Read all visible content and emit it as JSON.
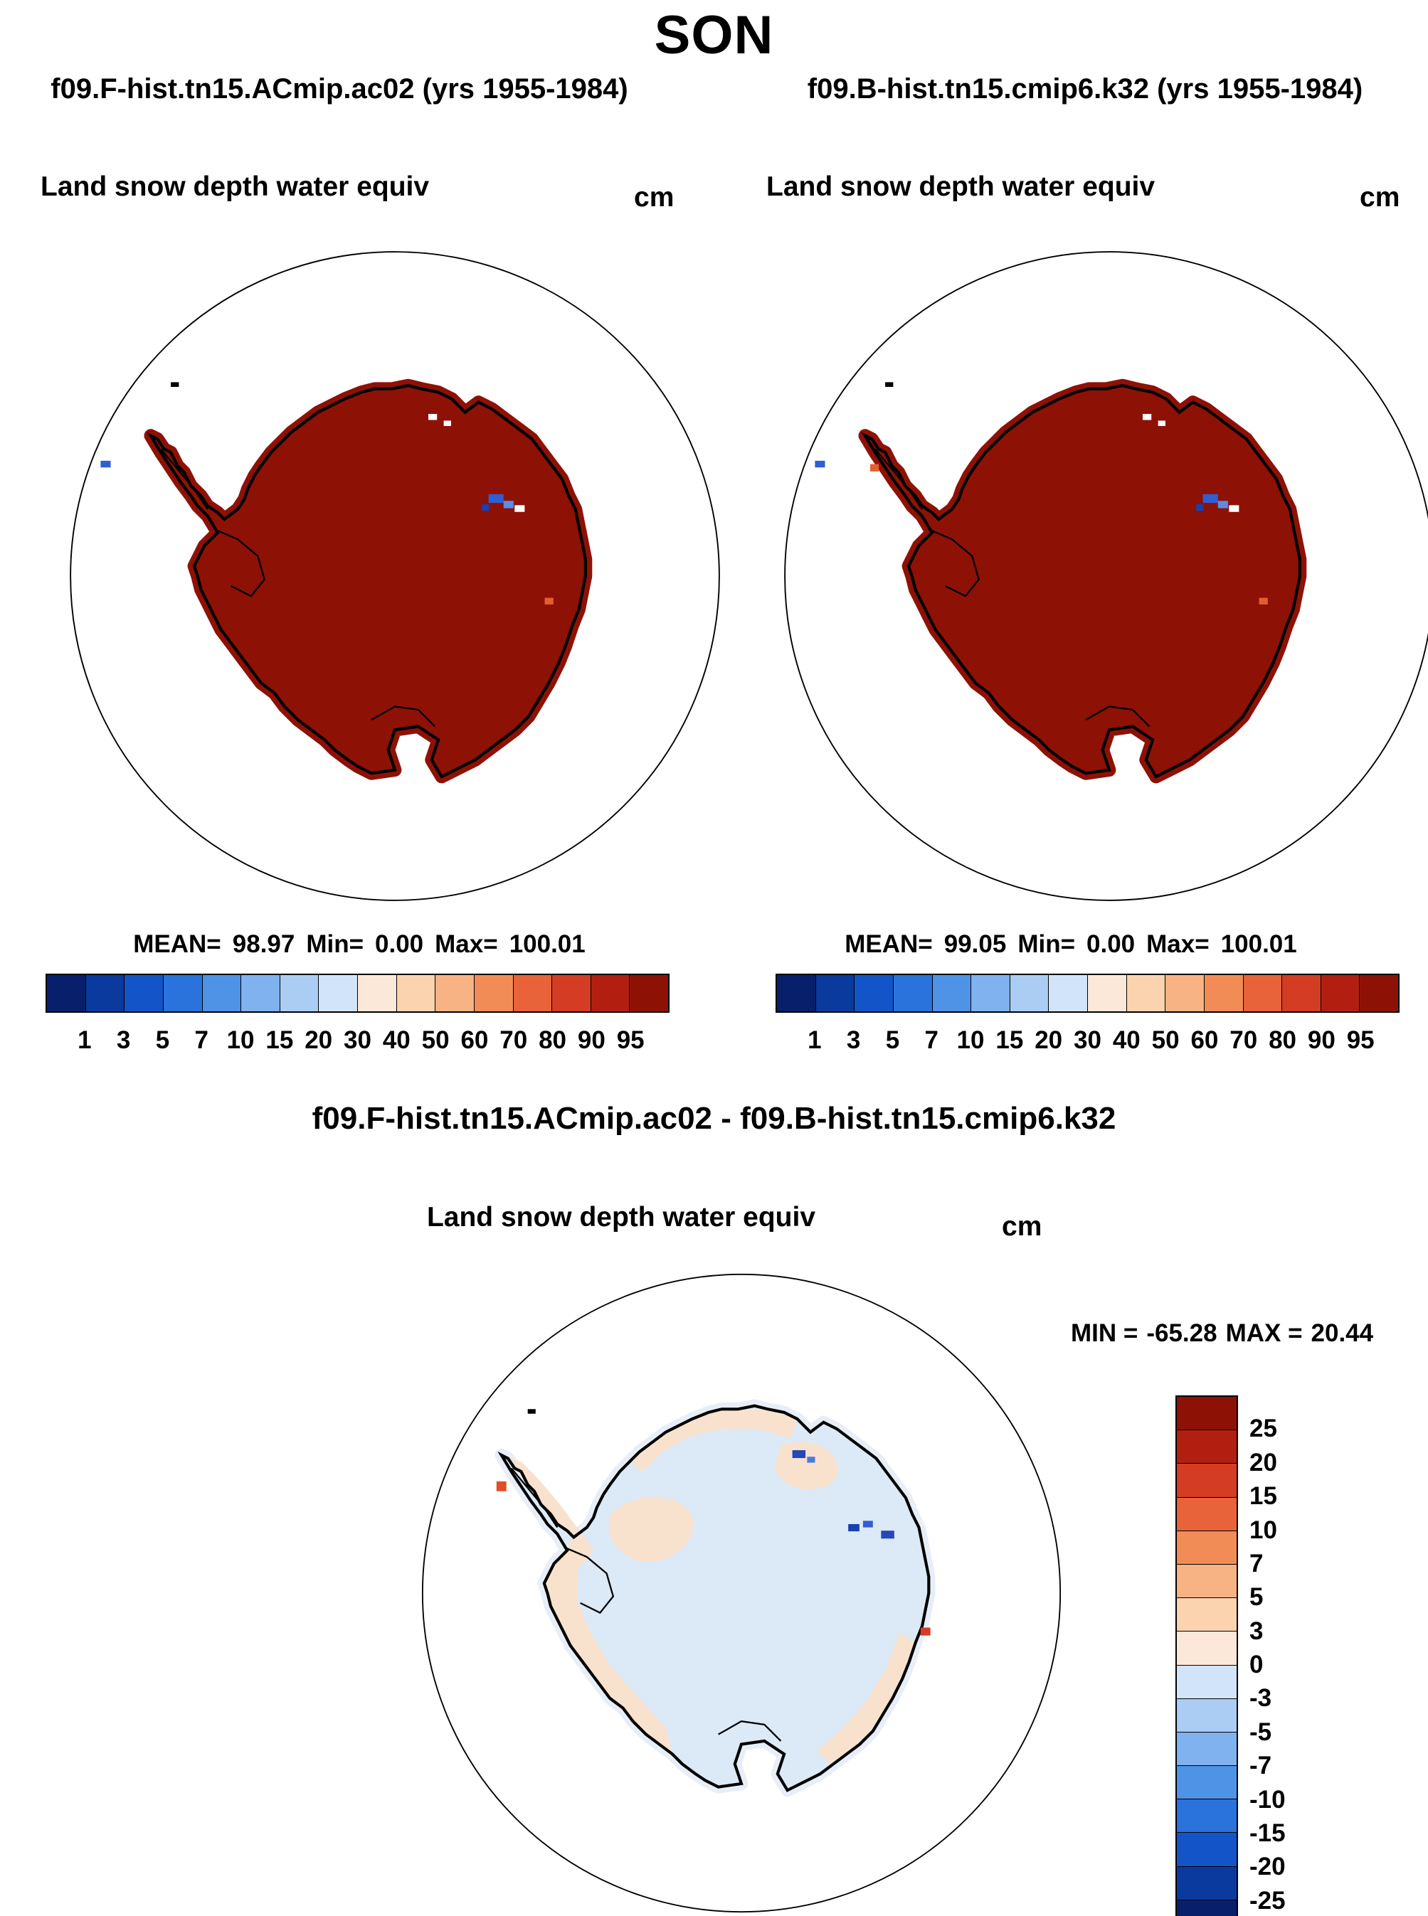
{
  "page": {
    "title": "SON"
  },
  "labels": {
    "mean": "MEAN=",
    "min": "Min=",
    "max": "Max=",
    "diff_min": "MIN =",
    "diff_max": "MAX ="
  },
  "panels": [
    {
      "title": "f09.F-hist.tn15.ACmip.ac02 (yrs 1955-1984)",
      "field_label": "Land snow depth water equiv",
      "units": "cm",
      "stats": {
        "mean": "98.97",
        "min": "0.00",
        "max": "100.01"
      }
    },
    {
      "title": "f09.B-hist.tn15.cmip6.k32 (yrs 1955-1984)",
      "field_label": "Land snow depth water equiv",
      "units": "cm",
      "stats": {
        "mean": "99.05",
        "min": "0.00",
        "max": "100.01"
      }
    }
  ],
  "colorbar": {
    "tick_labels": [
      "1",
      "3",
      "5",
      "7",
      "10",
      "15",
      "20",
      "30",
      "40",
      "50",
      "60",
      "70",
      "80",
      "90",
      "95"
    ],
    "colors": [
      "#08206b",
      "#0a3a9e",
      "#1355c8",
      "#2a72dc",
      "#4f93e6",
      "#7fb2ee",
      "#abcdf4",
      "#d2e4f9",
      "#fce8d8",
      "#fbd3ae",
      "#f8b384",
      "#f28c57",
      "#e8633a",
      "#d43d24",
      "#b21f10",
      "#8e1106"
    ]
  },
  "difference": {
    "title": "f09.F-hist.tn15.ACmip.ac02 - f09.B-hist.tn15.cmip6.k32",
    "field_label": "Land snow depth water equiv",
    "units": "cm",
    "min": "-65.28",
    "max": "20.44",
    "colorbar": {
      "tick_labels": [
        "25",
        "20",
        "15",
        "10",
        "7",
        "5",
        "3",
        "0",
        "-3",
        "-5",
        "-7",
        "-10",
        "-15",
        "-20",
        "-25"
      ],
      "colors": [
        "#8e1106",
        "#b21f10",
        "#d43d24",
        "#e8633a",
        "#f28c57",
        "#f8b384",
        "#fbd3ae",
        "#fce8d8",
        "#d2e4f9",
        "#abcdf4",
        "#7fb2ee",
        "#4f93e6",
        "#2a72dc",
        "#1355c8",
        "#0a3a9e",
        "#08206b"
      ]
    }
  },
  "colors": {
    "continent_fill": "#8e1106",
    "diff_base": "#dce9f6",
    "diff_warm": "#f9e2cd",
    "diff_halo": "#e8eef7",
    "coastline": "#000000",
    "background": "#ffffff"
  },
  "chart_data": [
    {
      "type": "heatmap",
      "subtype": "south-polar-stereographic-map",
      "title": "f09.F-hist.tn15.ACmip.ac02 (yrs 1955-1984)",
      "variable": "Land snow depth water equiv",
      "units": "cm",
      "region": "Antarctica",
      "stats": {
        "mean": 98.97,
        "min": 0.0,
        "max": 100.01
      },
      "contour_levels": [
        1,
        3,
        5,
        7,
        10,
        15,
        20,
        30,
        40,
        50,
        60,
        70,
        80,
        90,
        95
      ],
      "palette": "blue-to-dark-red, 16 bins",
      "description": "Antarctic continent almost uniformly in the top bin (>95 cm, dark red); a few isolated blue/white low-value grid cells near the coast around 90E and near the Antarctic Peninsula."
    },
    {
      "type": "heatmap",
      "subtype": "south-polar-stereographic-map",
      "title": "f09.B-hist.tn15.cmip6.k32 (yrs 1955-1984)",
      "variable": "Land snow depth water equiv",
      "units": "cm",
      "region": "Antarctica",
      "stats": {
        "mean": 99.05,
        "min": 0.0,
        "max": 100.01
      },
      "contour_levels": [
        1,
        3,
        5,
        7,
        10,
        15,
        20,
        30,
        40,
        50,
        60,
        70,
        80,
        90,
        95
      ],
      "palette": "blue-to-dark-red, 16 bins",
      "description": "Nearly identical to the first panel: continent in top bin (>95 cm) with scattered low-value cells near 90E coast and the Peninsula."
    },
    {
      "type": "heatmap",
      "subtype": "south-polar-stereographic-map",
      "title": "f09.F-hist.tn15.ACmip.ac02 - f09.B-hist.tn15.cmip6.k32",
      "variable": "Land snow depth water equiv",
      "units": "cm",
      "region": "Antarctica",
      "stats": {
        "min": -65.28,
        "max": 20.44
      },
      "contour_levels": [
        -25,
        -20,
        -15,
        -10,
        -7,
        -5,
        -3,
        0,
        3,
        5,
        7,
        10,
        15,
        20,
        25
      ],
      "palette": "dark-red(positive) to dark-blue(negative), 16 bins",
      "description": "Differences mostly within +/-3 cm (pale orange / pale blue); scattered strong negative cells (dark blue) near 90E, a red positive cell on the east coast and near the Peninsula tip."
    }
  ]
}
